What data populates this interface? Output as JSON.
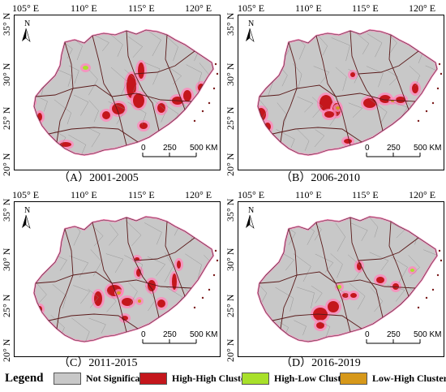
{
  "x_ticks": [
    "105° E",
    "110° E",
    "115° E",
    "120° E"
  ],
  "y_ticks": [
    "35° N",
    "30° N",
    "25° N",
    "20° N"
  ],
  "north_label": "N",
  "scale": {
    "labels": [
      "0",
      "250",
      "500 KM"
    ]
  },
  "panels": [
    {
      "caption": "（A）2001-2005",
      "period": "2001-2005"
    },
    {
      "caption": "（B）2006-2010",
      "period": "2006-2010"
    },
    {
      "caption": "（C）2011-2015",
      "period": "2011-2015"
    },
    {
      "caption": "（D）2016-2019",
      "period": "2016-2019"
    }
  ],
  "legend": {
    "title": "Legend",
    "items": [
      {
        "label": "Not Significant",
        "color": "#c8c8c8"
      },
      {
        "label": "High-High Cluster",
        "color": "#c4161c"
      },
      {
        "label": "High-Low Cluster",
        "color": "#a8e02a"
      },
      {
        "label": "Low-High Cluster",
        "color": "#d6981a"
      }
    ]
  },
  "colors": {
    "boundary": "#ff88bb",
    "province": "#5a1a1a",
    "base": "#c8c8c8"
  }
}
